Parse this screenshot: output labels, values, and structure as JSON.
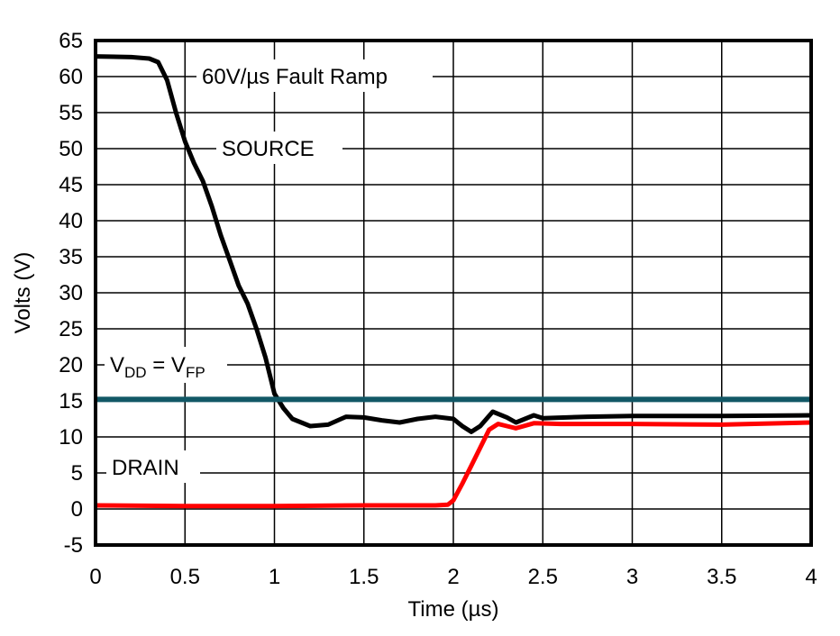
{
  "chart_data": {
    "type": "line",
    "title": "",
    "xlabel": "Time (µs)",
    "ylabel": "Volts (V)",
    "xlim": [
      0,
      4
    ],
    "ylim": [
      -5,
      65
    ],
    "xticks": [
      "0",
      "0.5",
      "1",
      "1.5",
      "2",
      "2.5",
      "3",
      "3.5",
      "4"
    ],
    "yticks": [
      "-5",
      "0",
      "5",
      "10",
      "15",
      "20",
      "25",
      "30",
      "35",
      "40",
      "45",
      "50",
      "55",
      "60",
      "65"
    ],
    "grid": true,
    "annotations": {
      "ramp": "60V/µs Fault Ramp",
      "source": "SOURCE",
      "drain": "DRAIN",
      "vdd_main": "V",
      "vdd_sub": "DD",
      "vdd_eq": " = V",
      "vfp_sub": "FP"
    },
    "series": [
      {
        "label": "SOURCE",
        "color": "#000000",
        "x": [
          0,
          0.2,
          0.3,
          0.35,
          0.4,
          0.45,
          0.5,
          0.55,
          0.6,
          0.65,
          0.7,
          0.75,
          0.8,
          0.85,
          0.9,
          0.95,
          1.0,
          1.05,
          1.1,
          1.2,
          1.3,
          1.4,
          1.5,
          1.6,
          1.7,
          1.8,
          1.9,
          2.0,
          2.05,
          2.1,
          2.15,
          2.22,
          2.3,
          2.35,
          2.45,
          2.5,
          2.75,
          3.0,
          3.5,
          4.0
        ],
        "y": [
          62.8,
          62.7,
          62.5,
          62.0,
          59.5,
          55,
          51,
          48,
          45.5,
          42,
          38,
          34.5,
          31,
          28.5,
          25,
          21,
          16,
          14,
          12.5,
          11.5,
          11.7,
          12.8,
          12.7,
          12.3,
          12.0,
          12.5,
          12.8,
          12.5,
          11.5,
          10.7,
          11.5,
          13.5,
          12.7,
          12.0,
          13.0,
          12.6,
          12.8,
          12.9,
          12.9,
          13.0
        ]
      },
      {
        "label": "DRAIN",
        "color": "#ff0000",
        "x": [
          0,
          0.5,
          1.0,
          1.5,
          1.9,
          1.97,
          2.0,
          2.05,
          2.1,
          2.15,
          2.2,
          2.25,
          2.3,
          2.35,
          2.45,
          2.6,
          3.0,
          3.5,
          4.0
        ],
        "y": [
          0.5,
          0.4,
          0.4,
          0.5,
          0.5,
          0.6,
          1.2,
          3.5,
          6,
          8.5,
          11,
          11.8,
          11.5,
          11.2,
          11.9,
          11.8,
          11.8,
          11.7,
          12.0
        ]
      },
      {
        "label": "VDD = VFP",
        "color": "#125866",
        "x": [
          0,
          4
        ],
        "y": [
          15.2,
          15.2
        ]
      }
    ]
  }
}
